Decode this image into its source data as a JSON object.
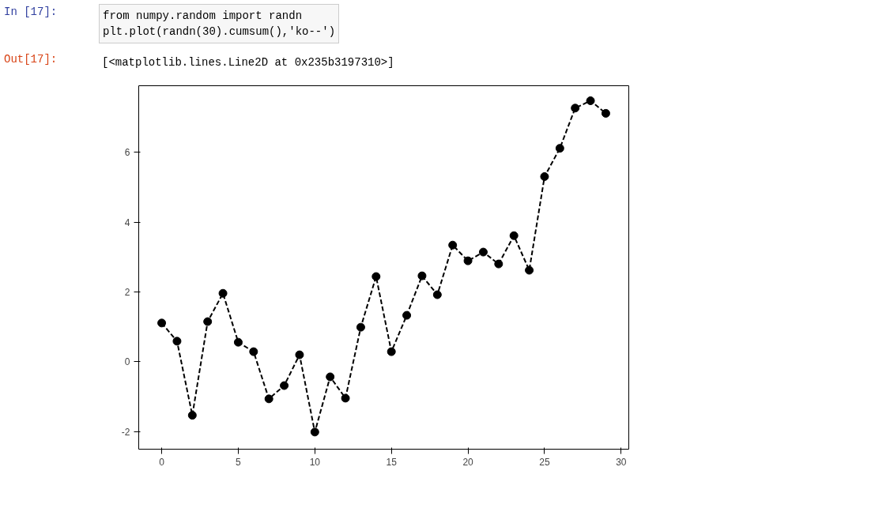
{
  "chart_data": {
    "type": "line",
    "annotations": [
      "In [17]:",
      "from numpy.random import randn\nplt.plot(randn(30).cumsum(),'ko--')",
      "Out[17]:",
      "[<matplotlib.lines.Line2D at 0x235b3197310>]"
    ],
    "x": [
      0,
      1,
      2,
      3,
      4,
      5,
      6,
      7,
      8,
      9,
      10,
      11,
      12,
      13,
      14,
      15,
      16,
      17,
      18,
      19,
      20,
      21,
      22,
      23,
      24,
      25,
      26,
      27,
      28,
      29
    ],
    "series": [
      {
        "color": "#000000",
        "values": [
          1.11,
          0.59,
          -1.53,
          1.15,
          1.96,
          0.56,
          0.29,
          -1.06,
          -0.68,
          0.2,
          -2.01,
          -0.43,
          -1.04,
          0.99,
          2.44,
          0.29,
          1.33,
          2.46,
          1.92,
          3.34,
          2.89,
          3.14,
          2.8,
          3.61,
          2.62,
          5.3,
          6.11,
          7.26,
          7.47,
          7.11
        ]
      }
    ],
    "xlim": [
      -1.5,
      30.5
    ],
    "ylim": [
      -2.5,
      7.9
    ],
    "xticks": [
      0,
      5,
      10,
      15,
      20,
      25,
      30
    ],
    "yticks": [
      -2,
      0,
      2,
      4,
      6
    ],
    "grid": false,
    "marker": "circle",
    "line_style": "dashed"
  }
}
